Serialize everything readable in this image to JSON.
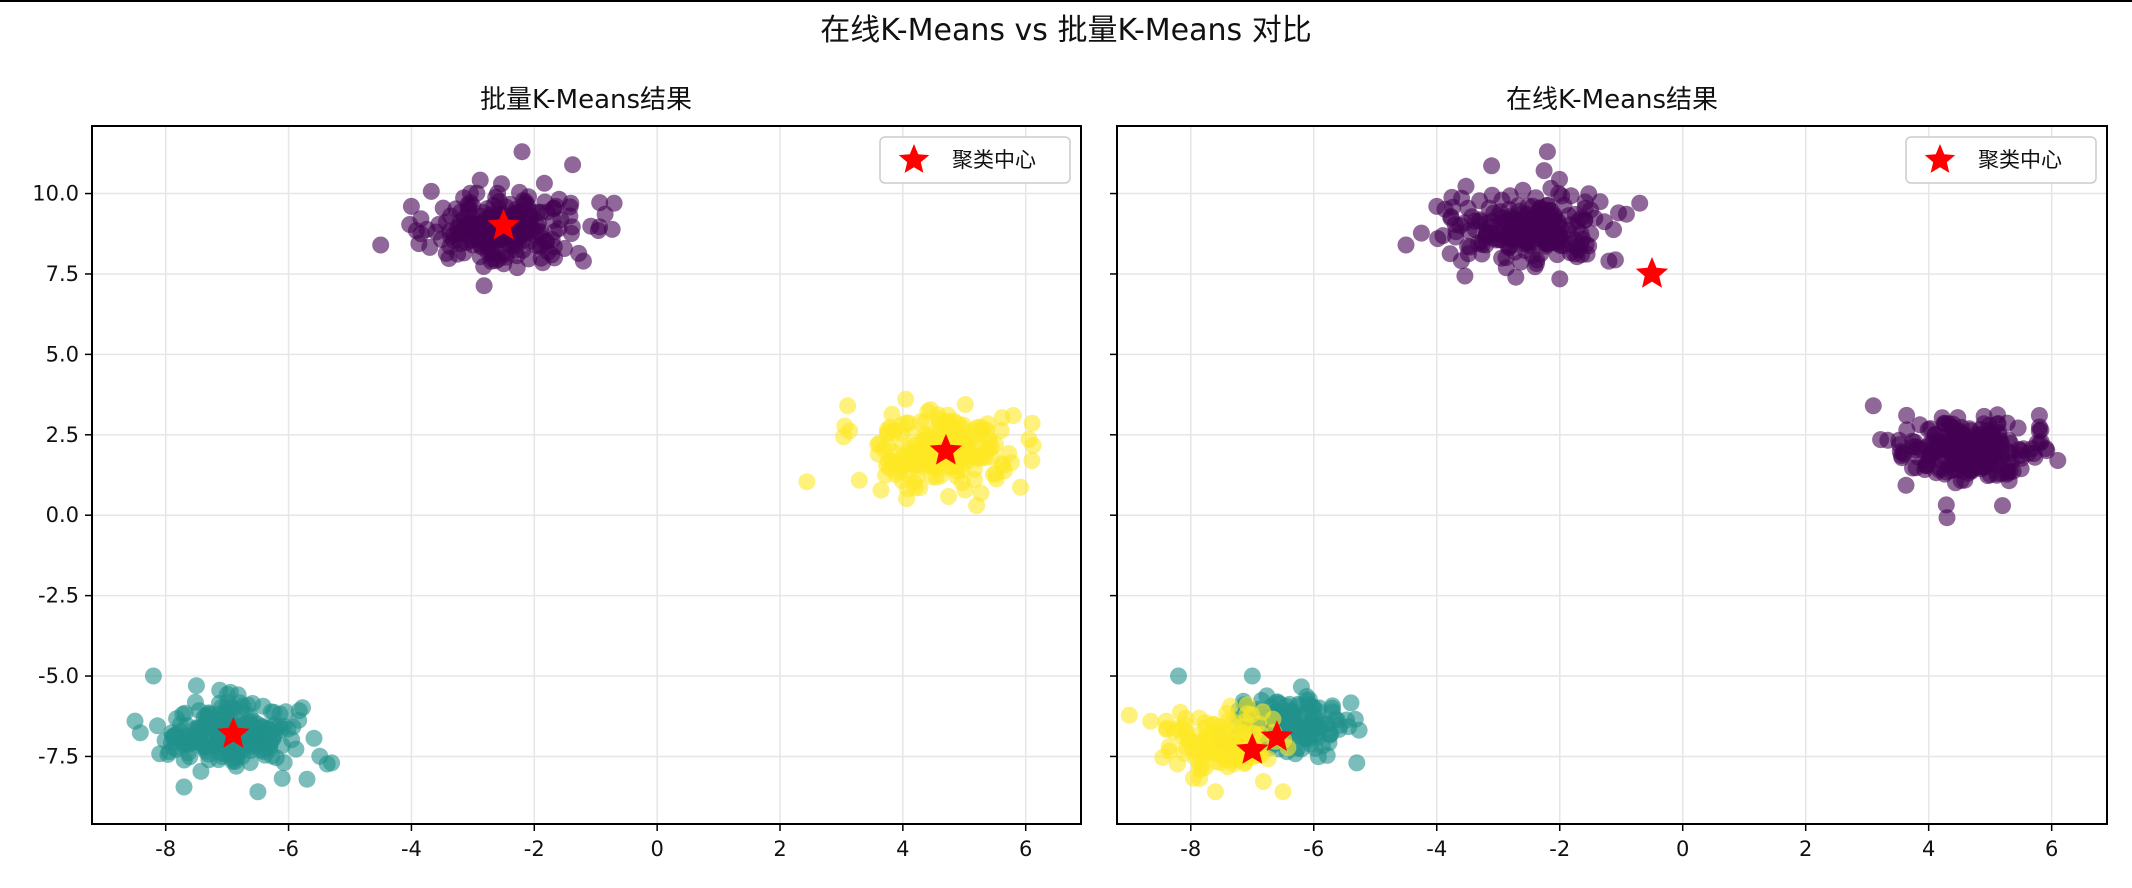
{
  "figure": {
    "suptitle": "在线K-Means vs 批量K-Means 对比"
  },
  "colors": {
    "cluster_purple": "#440154",
    "cluster_teal": "#21918c",
    "cluster_yellow": "#fde725",
    "center_red": "#ff0000",
    "grid": "#e6e6e6"
  },
  "chart_data": [
    {
      "type": "scatter",
      "title": "批量K-Means结果",
      "xlabel": "",
      "ylabel": "",
      "xlim": [
        -9.2,
        6.9
      ],
      "ylim": [
        -9.6,
        12.1
      ],
      "xticks": [
        -8,
        -6,
        -4,
        -2,
        0,
        2,
        4,
        6
      ],
      "xtick_labels": [
        "-8",
        "-6",
        "-4",
        "-2",
        "0",
        "2",
        "4",
        "6"
      ],
      "yticks": [
        -7.5,
        -5.0,
        -2.5,
        0.0,
        2.5,
        5.0,
        7.5,
        10.0
      ],
      "ytick_labels": [
        "-7.5",
        "-5.0",
        "-2.5",
        "0.0",
        "2.5",
        "5.0",
        "7.5",
        "10.0"
      ],
      "grid": true,
      "legend_position": "top-right",
      "point_alpha": 0.6,
      "clusters": [
        {
          "color": "#440154",
          "center": [
            -2.5,
            8.9
          ],
          "spread": [
            0.6,
            0.55
          ],
          "count": 240,
          "outliers": [
            [
              -2.2,
              11.3
            ],
            [
              -4.5,
              8.4
            ],
            [
              -0.7,
              9.7
            ],
            [
              -4.0,
              9.6
            ],
            [
              -1.2,
              7.9
            ]
          ]
        },
        {
          "color": "#21918c",
          "center": [
            -6.9,
            -6.8
          ],
          "spread": [
            0.55,
            0.5
          ],
          "count": 240,
          "outliers": [
            [
              -8.2,
              -5.0
            ],
            [
              -5.3,
              -7.7
            ],
            [
              -6.5,
              -8.6
            ],
            [
              -8.5,
              -6.4
            ],
            [
              -7.5,
              -5.3
            ]
          ]
        },
        {
          "color": "#fde725",
          "center": [
            4.6,
            2.0
          ],
          "spread": [
            0.55,
            0.55
          ],
          "count": 240,
          "outliers": [
            [
              3.1,
              3.4
            ],
            [
              6.1,
              1.7
            ],
            [
              5.2,
              0.3
            ],
            [
              3.6,
              1.9
            ],
            [
              5.8,
              3.1
            ]
          ]
        }
      ],
      "centers": [
        {
          "x": -2.5,
          "y": 9.0
        },
        {
          "x": -6.9,
          "y": -6.8
        },
        {
          "x": 4.7,
          "y": 2.0
        }
      ],
      "legend": [
        {
          "label": "聚类中心",
          "marker": "star",
          "color": "#ff0000"
        }
      ]
    },
    {
      "type": "scatter",
      "title": "在线K-Means结果",
      "xlabel": "",
      "ylabel": "",
      "xlim": [
        -9.2,
        6.9
      ],
      "ylim": [
        -9.6,
        12.1
      ],
      "xticks": [
        -8,
        -6,
        -4,
        -2,
        0,
        2,
        4,
        6
      ],
      "xtick_labels": [
        "-8",
        "-6",
        "-4",
        "-2",
        "0",
        "2",
        "4",
        "6"
      ],
      "yticks": [
        -7.5,
        -5.0,
        -2.5,
        0.0,
        2.5,
        5.0,
        7.5,
        10.0
      ],
      "ytick_labels": [],
      "grid": true,
      "legend_position": "top-right",
      "point_alpha": 0.6,
      "clusters": [
        {
          "color": "#440154",
          "center": [
            -2.5,
            8.9
          ],
          "spread": [
            0.6,
            0.55
          ],
          "count": 240,
          "outliers": [
            [
              -2.2,
              11.3
            ],
            [
              -4.5,
              8.4
            ],
            [
              -0.7,
              9.7
            ],
            [
              -4.0,
              9.6
            ],
            [
              -1.2,
              7.9
            ]
          ]
        },
        {
          "color": "#440154",
          "center": [
            4.6,
            2.0
          ],
          "spread": [
            0.55,
            0.55
          ],
          "count": 240,
          "outliers": [
            [
              3.1,
              3.4
            ],
            [
              6.1,
              1.7
            ],
            [
              5.2,
              0.3
            ],
            [
              3.6,
              1.9
            ],
            [
              5.8,
              3.1
            ]
          ]
        },
        {
          "color": "#21918c",
          "center": [
            -6.4,
            -6.5
          ],
          "spread": [
            0.45,
            0.45
          ],
          "count": 150,
          "outliers": [
            [
              -8.2,
              -5.0
            ],
            [
              -5.3,
              -7.7
            ],
            [
              -7.0,
              -5.0
            ],
            [
              -5.7,
              -6.0
            ]
          ]
        },
        {
          "color": "#fde725",
          "center": [
            -7.5,
            -7.1
          ],
          "spread": [
            0.45,
            0.45
          ],
          "count": 130,
          "outliers": [
            [
              -6.5,
              -8.6
            ],
            [
              -8.4,
              -6.4
            ],
            [
              -7.6,
              -8.6
            ]
          ]
        }
      ],
      "centers": [
        {
          "x": -0.5,
          "y": 7.5
        },
        {
          "x": -6.6,
          "y": -6.9
        },
        {
          "x": -7.0,
          "y": -7.3
        }
      ],
      "legend": [
        {
          "label": "聚类中心",
          "marker": "star",
          "color": "#ff0000"
        }
      ]
    }
  ]
}
